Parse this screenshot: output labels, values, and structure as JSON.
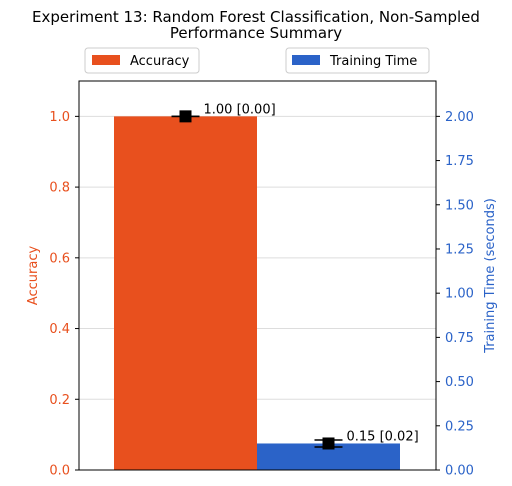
{
  "chart_data": {
    "type": "bar",
    "title_line1": "Experiment 13: Random Forest Classification, Non-Sampled",
    "title_line2": "Performance Summary",
    "categories": [
      ""
    ],
    "series": [
      {
        "name": "Accuracy",
        "axis": "left",
        "values": [
          1.0
        ],
        "error": [
          0.0
        ],
        "label": "1.00 [0.00]",
        "color": "#e8501e"
      },
      {
        "name": "Training Time",
        "axis": "right",
        "values": [
          0.15
        ],
        "error": [
          0.02
        ],
        "label": "0.15 [0.02]",
        "color": "#2b63c8"
      }
    ],
    "left_axis": {
      "label": "Accuracy",
      "ylim": [
        0,
        1.1
      ],
      "ticks": [
        0.0,
        0.2,
        0.4,
        0.6,
        0.8,
        1.0
      ],
      "tick_labels": [
        "0.0",
        "0.2",
        "0.4",
        "0.6",
        "0.8",
        "1.0"
      ],
      "color": "#e8501e"
    },
    "right_axis": {
      "label": "Training Time (seconds)",
      "ylim": [
        0,
        2.2
      ],
      "ticks": [
        0.0,
        0.25,
        0.5,
        0.75,
        1.0,
        1.25,
        1.5,
        1.75,
        2.0
      ],
      "tick_labels": [
        "0.00",
        "0.25",
        "0.50",
        "0.75",
        "1.00",
        "1.25",
        "1.50",
        "1.75",
        "2.00"
      ],
      "color": "#2b63c8"
    },
    "grid": "horizontal",
    "legend": [
      {
        "label": "Accuracy",
        "placement": "top-left"
      },
      {
        "label": "Training Time",
        "placement": "top-right"
      }
    ]
  }
}
